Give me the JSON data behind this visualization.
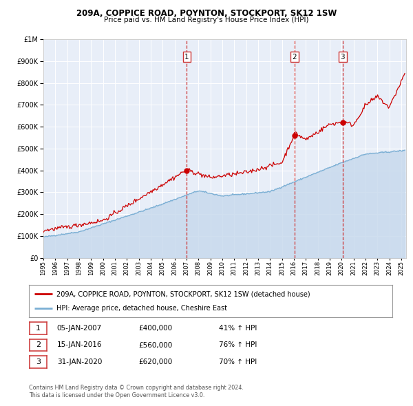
{
  "title": "209A, COPPICE ROAD, POYNTON, STOCKPORT, SK12 1SW",
  "subtitle": "Price paid vs. HM Land Registry's House Price Index (HPI)",
  "legend_line1": "209A, COPPICE ROAD, POYNTON, STOCKPORT, SK12 1SW (detached house)",
  "legend_line2": "HPI: Average price, detached house, Cheshire East",
  "footnote1": "Contains HM Land Registry data © Crown copyright and database right 2024.",
  "footnote2": "This data is licensed under the Open Government Licence v3.0.",
  "transactions": [
    {
      "num": 1,
      "date": "05-JAN-2007",
      "price": "£400,000",
      "pct": "41% ↑ HPI",
      "year": 2007.03
    },
    {
      "num": 2,
      "date": "15-JAN-2016",
      "price": "£560,000",
      "pct": "76% ↑ HPI",
      "year": 2016.04
    },
    {
      "num": 3,
      "date": "31-JAN-2020",
      "price": "£620,000",
      "pct": "70% ↑ HPI",
      "year": 2020.08
    }
  ],
  "transaction_prices": [
    400000,
    560000,
    620000
  ],
  "ylim": [
    0,
    1000000
  ],
  "xlim_start": 1995,
  "xlim_end": 2025.4,
  "plot_bg": "#e8eef8",
  "red_line_color": "#cc0000",
  "blue_line_color": "#7bafd4",
  "blue_fill_color": "#c5d8ec",
  "grid_color": "#ffffff",
  "dashed_line_color": "#cc3333"
}
